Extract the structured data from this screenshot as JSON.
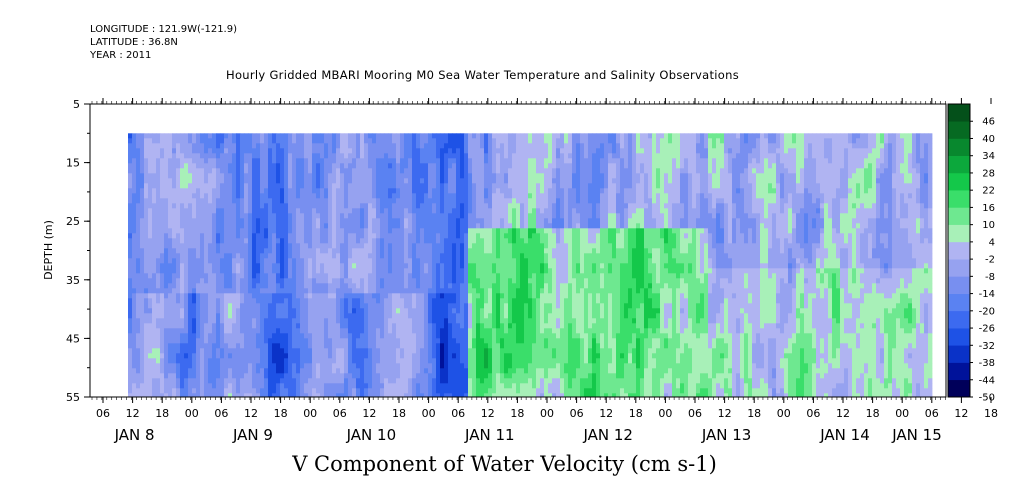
{
  "header": {
    "longitude": "LONGITUDE : 121.9W(-121.9)",
    "latitude": "LATITUDE : 36.8N",
    "year": "YEAR : 2011"
  },
  "chart_data": {
    "type": "heatmap",
    "title": "Hourly Gridded MBARI Mooring M0 Sea Water Temperature and Salinity Observations",
    "xlabel": "V Component of Water Velocity (cm s-1)",
    "ylabel": "DEPTH (m)",
    "y_range": [
      5,
      55
    ],
    "y_ticks": [
      5,
      15,
      25,
      35,
      45,
      55
    ],
    "y_inverted": true,
    "data_depth_range": [
      10,
      55
    ],
    "x_range_hours": "2011-01-07T23:00 to 2011-01-15T03:00",
    "hour_tick_labels": [
      "06",
      "12",
      "18",
      "00",
      "06",
      "12",
      "18",
      "00",
      "06",
      "12",
      "18",
      "00",
      "06",
      "12",
      "18",
      "00",
      "06",
      "12",
      "18",
      "00",
      "06",
      "12",
      "18",
      "00",
      "06",
      "12",
      "18",
      "00",
      "06",
      "12",
      "18",
      "00"
    ],
    "day_labels": [
      "JAN  8",
      "JAN  9",
      "JAN 10",
      "JAN 11",
      "JAN 12",
      "JAN 13",
      "JAN 14",
      "JAN 15"
    ],
    "colorbar_levels": [
      -50,
      -44,
      -38,
      -32,
      -26,
      -20,
      -14,
      -8,
      -2,
      4,
      10,
      16,
      22,
      28,
      34,
      40,
      46
    ],
    "colorbar_colors": [
      "#00005a",
      "#00129a",
      "#0a32c8",
      "#1e52e6",
      "#3c6af0",
      "#5a82f2",
      "#788ff0",
      "#96a2f0",
      "#b0b4f2",
      "#a8f0b8",
      "#6ee890",
      "#3ade6a",
      "#14c84a",
      "#0ca83c",
      "#08882e",
      "#066a22",
      "#04501a"
    ],
    "pattern": "Blue (negative, southward) velocities dominate Jan 8-11 near surface and mid-depth; green (positive) bands dominate Jan 11-13 at depth 30-55 m, with alternating diagonal streaks through Jan 14."
  }
}
